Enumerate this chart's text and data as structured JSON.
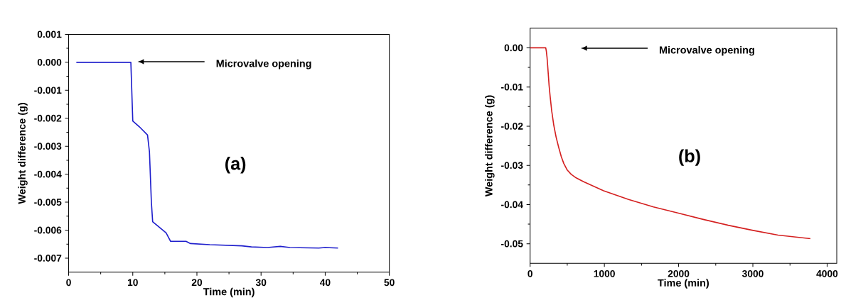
{
  "chart_data": [
    {
      "type": "line",
      "xlabel": "Time (min)",
      "ylabel": "Weight difference (g)",
      "xlim": [
        0,
        50
      ],
      "ylim": [
        -0.0075,
        0.001
      ],
      "xticks": [
        0,
        10,
        20,
        30,
        40,
        50
      ],
      "yticks": [
        {
          "value": 0.001,
          "label": "0.001"
        },
        {
          "value": 0,
          "label": "0.000"
        },
        {
          "value": -0.001,
          "label": "-0.001"
        },
        {
          "value": -0.002,
          "label": "-0.002"
        },
        {
          "value": -0.003,
          "label": "-0.003"
        },
        {
          "value": -0.004,
          "label": "-0.004"
        },
        {
          "value": -0.005,
          "label": "-0.005"
        },
        {
          "value": -0.006,
          "label": "-0.006"
        },
        {
          "value": -0.007,
          "label": "-0.007"
        }
      ],
      "annotations": [
        "Microvalve opening",
        "(a)"
      ],
      "series": [
        {
          "color": "#1f1fcc",
          "x": [
            1.2,
            2.5,
            5,
            8,
            9.7,
            10,
            11,
            12.3,
            12.6,
            12.9,
            13.1,
            15.2,
            15.9,
            18.3,
            19,
            22,
            27,
            28.5,
            31,
            33,
            34.5,
            39,
            40,
            42
          ],
          "values": [
            0,
            0,
            0,
            0,
            0,
            -0.0021,
            -0.0023,
            -0.0026,
            -0.0032,
            -0.005,
            -0.0057,
            -0.0061,
            -0.0064,
            -0.0064,
            -0.00648,
            -0.00652,
            -0.00656,
            -0.0066,
            -0.00662,
            -0.00658,
            -0.00662,
            -0.00664,
            -0.00662,
            -0.00664
          ]
        }
      ]
    },
    {
      "type": "line",
      "xlabel": "Time (min)",
      "ylabel": "Weight difference (g)",
      "xlim": [
        0,
        4130
      ],
      "ylim": [
        -0.055,
        0.005
      ],
      "xticks": [
        0,
        1000,
        2000,
        3000,
        4000
      ],
      "yticks": [
        {
          "value": 0,
          "label": "0.00"
        },
        {
          "value": -0.01,
          "label": "-0.01"
        },
        {
          "value": -0.02,
          "label": "-0.02"
        },
        {
          "value": -0.03,
          "label": "-0.03"
        },
        {
          "value": -0.04,
          "label": "-0.04"
        },
        {
          "value": -0.05,
          "label": "-0.05"
        }
      ],
      "annotations": [
        "Microvalve opening",
        "(b)"
      ],
      "series": [
        {
          "color": "#d42020",
          "x": [
            0,
            210,
            218,
            228,
            240,
            255,
            270,
            290,
            319,
            350,
            386,
            420,
            453,
            500,
            554,
            620,
            721,
            990,
            1326,
            1661,
            1997,
            2332,
            2668,
            3003,
            3339,
            3775
          ],
          "values": [
            0,
            0,
            -0.0008,
            -0.0025,
            -0.0055,
            -0.0095,
            -0.0125,
            -0.016,
            -0.0198,
            -0.0228,
            -0.0255,
            -0.0278,
            -0.0295,
            -0.0312,
            -0.0323,
            -0.0332,
            -0.0342,
            -0.0365,
            -0.0387,
            -0.0406,
            -0.0422,
            -0.0438,
            -0.0453,
            -0.0466,
            -0.0478,
            -0.0487
          ]
        }
      ]
    }
  ]
}
